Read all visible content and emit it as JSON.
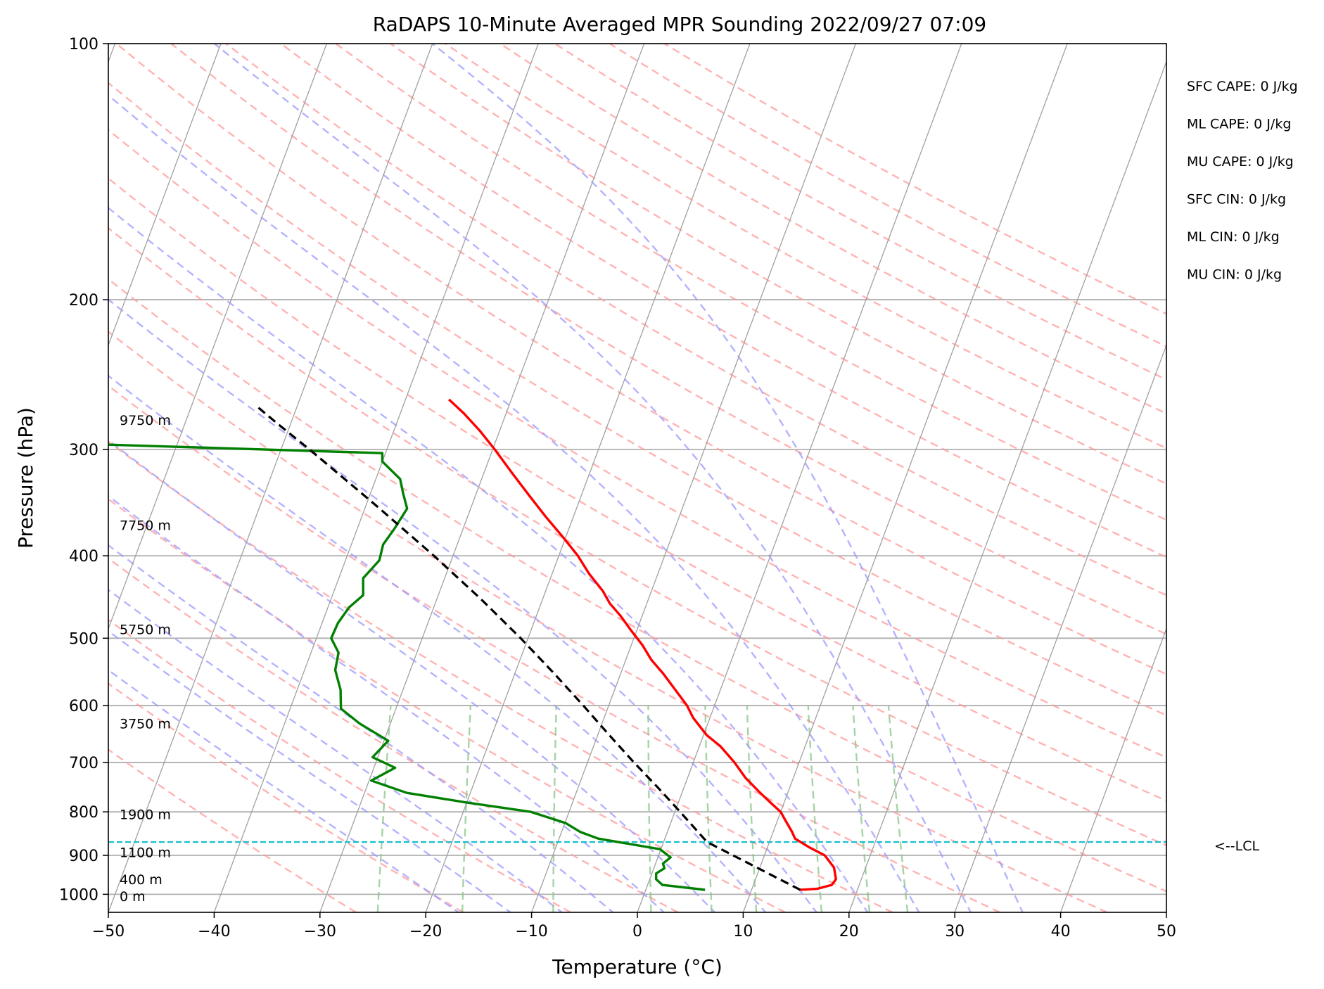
{
  "chart_data": {
    "type": "line",
    "subtype": "skew-t log-p",
    "title": "RaDAPS 10-Minute Averaged MPR Sounding 2022/09/27 07:09",
    "xlabel": "Temperature (°C)",
    "ylabel": "Pressure (hPa)",
    "xlim": [
      -50,
      50
    ],
    "ylim": [
      1050,
      100
    ],
    "y_scale": "log",
    "grid": true,
    "x_ticks": [
      "−50",
      "−40",
      "−30",
      "−20",
      "−10",
      "0",
      "10",
      "20",
      "30",
      "40",
      "50"
    ],
    "x_tick_values": [
      -50,
      -40,
      -30,
      -20,
      -10,
      0,
      10,
      20,
      30,
      40,
      50
    ],
    "y_ticks": [
      "100",
      "200",
      "300",
      "400",
      "500",
      "600",
      "700",
      "800",
      "900",
      "1000"
    ],
    "y_tick_values": [
      100,
      200,
      300,
      400,
      500,
      600,
      700,
      800,
      900,
      1000
    ],
    "skew": 30,
    "isotherms": [
      -130,
      -120,
      -110,
      -100,
      -90,
      -80,
      -70,
      -60,
      -50,
      -40,
      -30,
      -20,
      -10,
      0,
      10,
      20,
      30,
      40,
      50
    ],
    "dry_adiabats_C": [
      -30,
      -20,
      -10,
      0,
      10,
      20,
      30,
      40,
      50,
      60,
      70,
      80,
      90,
      100,
      110,
      120,
      130,
      140,
      150,
      160,
      170,
      180,
      190,
      200
    ],
    "moist_adiabats_C": [
      -20,
      -15,
      -10,
      -5,
      0,
      5,
      10,
      15,
      20,
      25,
      30,
      35
    ],
    "mixing_ratios_gkg": [
      0.5,
      1,
      2,
      4,
      6,
      8,
      12,
      16,
      20
    ],
    "series": [
      {
        "name": "",
        "color": "#ff0000",
        "role": "temperature",
        "p": [
          988,
          985,
          975,
          960,
          930,
          900,
          880,
          860,
          845,
          820,
          800,
          780,
          760,
          730,
          700,
          670,
          650,
          620,
          600,
          570,
          550,
          530,
          510,
          490,
          470,
          455,
          440,
          420,
          400,
          380,
          360,
          340,
          320,
          300,
          285,
          272,
          262
        ],
        "t": [
          14.6,
          16.2,
          17.4,
          17.6,
          17.0,
          15.7,
          13.9,
          12.3,
          11.8,
          10.8,
          10.0,
          8.7,
          7.4,
          5.5,
          3.9,
          2.0,
          0.3,
          -1.6,
          -2.6,
          -4.6,
          -6.0,
          -7.6,
          -8.9,
          -10.5,
          -12.1,
          -13.5,
          -14.6,
          -16.5,
          -18.2,
          -20.3,
          -22.6,
          -24.9,
          -27.3,
          -29.8,
          -31.9,
          -34.0,
          -35.9
        ]
      },
      {
        "name": "",
        "color": "#008000",
        "role": "dewpoint",
        "p": [
          988,
          975,
          960,
          945,
          932,
          920,
          905,
          885,
          860,
          845,
          825,
          800,
          780,
          760,
          735,
          710,
          690,
          660,
          630,
          605,
          575,
          545,
          520,
          500,
          480,
          460,
          445,
          425,
          405,
          388,
          372,
          352,
          338,
          325,
          310,
          303,
          296,
          294,
          292
        ],
        "t": [
          5.6,
          1.4,
          0.6,
          0.4,
          1.0,
          0.7,
          1.2,
          -0.1,
          -6.3,
          -8.2,
          -9.9,
          -13.6,
          -20.0,
          -26.0,
          -29.8,
          -28.0,
          -30.5,
          -29.6,
          -32.9,
          -35.2,
          -35.9,
          -37.1,
          -37.4,
          -38.6,
          -38.5,
          -38.0,
          -37.1,
          -37.7,
          -36.8,
          -37.0,
          -36.5,
          -36.0,
          -36.9,
          -37.7,
          -40.0,
          -40.3,
          -66.8,
          -80.0,
          -200.0
        ]
      },
      {
        "name": "",
        "color": "#000000",
        "role": "parcel",
        "dashed": true,
        "p": [
          988,
          868,
          800,
          750,
          700,
          650,
          600,
          550,
          500,
          450,
          400,
          350,
          300,
          280,
          266
        ],
        "t": [
          14.6,
          4.1,
          0.5,
          -2.4,
          -5.6,
          -8.9,
          -12.4,
          -16.3,
          -20.7,
          -25.8,
          -31.8,
          -38.9,
          -47.3,
          -51.2,
          -54.0
        ]
      }
    ],
    "lcl_pressure": 868,
    "lcl_label": "<--LCL",
    "height_labels": [
      {
        "label": "9750 m",
        "p": 277
      },
      {
        "label": "7750 m",
        "p": 368
      },
      {
        "label": "5750 m",
        "p": 488
      },
      {
        "label": "3750 m",
        "p": 630
      },
      {
        "label": "1900 m",
        "p": 805
      },
      {
        "label": "1100 m",
        "p": 892
      },
      {
        "label": "400 m",
        "p": 960
      },
      {
        "label": "0 m",
        "p": 1005
      }
    ],
    "indices": [
      {
        "label": "SFC CAPE: 0 J/kg"
      },
      {
        "label": "ML CAPE: 0 J/kg"
      },
      {
        "label": "MU CAPE: 0 J/kg"
      },
      {
        "label": "SFC CIN: 0 J/kg"
      },
      {
        "label": "ML CIN: 0 J/kg"
      },
      {
        "label": "MU CIN: 0 J/kg"
      }
    ],
    "colors": {
      "grid": "#b0b0b0",
      "isotherm": "#a0a0a0",
      "dry_adiabat": "#ff9999",
      "moist_adiabat": "#9999ff",
      "mixing_ratio": "#88c488",
      "lcl_line": "#17becf"
    }
  }
}
